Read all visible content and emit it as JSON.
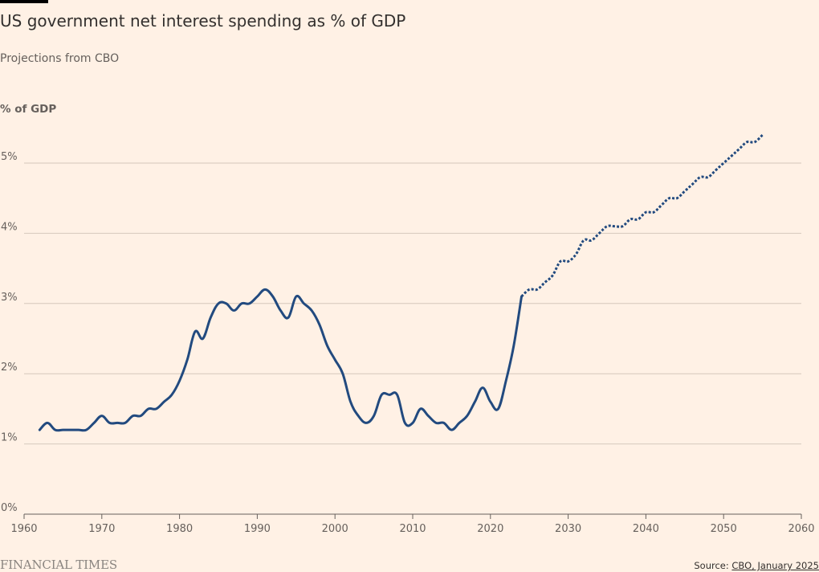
{
  "header": {
    "title": "US government net interest spending as % of GDP",
    "subtitle": "Projections from CBO"
  },
  "footer": {
    "brand": "FINANCIAL TIMES",
    "source_prefix": "Source: ",
    "source_link": "CBO, January 2025"
  },
  "colors": {
    "background": "#fff1e5",
    "line": "#224a7f",
    "grid": "#d6c8bc",
    "text": "#33302e",
    "muted": "#66605c"
  },
  "chart_data": {
    "type": "line",
    "title": "US government net interest spending as % of GDP",
    "subtitle": "Projections from CBO",
    "ylabel": "% of GDP",
    "xlabel": "",
    "xlim": [
      1960,
      2060
    ],
    "ylim": [
      0,
      5
    ],
    "x_ticks": [
      1960,
      1970,
      1980,
      1990,
      2000,
      2010,
      2020,
      2030,
      2040,
      2050,
      2060
    ],
    "y_ticks": [
      0,
      1,
      2,
      3,
      4,
      5
    ],
    "y_tick_labels": [
      "0%",
      "1%",
      "2%",
      "3%",
      "4%",
      "5%"
    ],
    "grid": "horizontal",
    "series": [
      {
        "style": "solid",
        "x": [
          1962,
          1963,
          1964,
          1965,
          1966,
          1967,
          1968,
          1969,
          1970,
          1971,
          1972,
          1973,
          1974,
          1975,
          1976,
          1977,
          1978,
          1979,
          1980,
          1981,
          1982,
          1983,
          1984,
          1985,
          1986,
          1987,
          1988,
          1989,
          1990,
          1991,
          1992,
          1993,
          1994,
          1995,
          1996,
          1997,
          1998,
          1999,
          2000,
          2001,
          2002,
          2003,
          2004,
          2005,
          2006,
          2007,
          2008,
          2009,
          2010,
          2011,
          2012,
          2013,
          2014,
          2015,
          2016,
          2017,
          2018,
          2019,
          2020,
          2021,
          2022,
          2023,
          2024
        ],
        "y": [
          1.2,
          1.3,
          1.2,
          1.2,
          1.2,
          1.2,
          1.2,
          1.3,
          1.4,
          1.3,
          1.3,
          1.3,
          1.4,
          1.4,
          1.5,
          1.5,
          1.6,
          1.7,
          1.9,
          2.2,
          2.6,
          2.5,
          2.8,
          3.0,
          3.0,
          2.9,
          3.0,
          3.0,
          3.1,
          3.2,
          3.1,
          2.9,
          2.8,
          3.1,
          3.0,
          2.9,
          2.7,
          2.4,
          2.2,
          2.0,
          1.6,
          1.4,
          1.3,
          1.4,
          1.7,
          1.7,
          1.7,
          1.3,
          1.3,
          1.5,
          1.4,
          1.3,
          1.3,
          1.2,
          1.3,
          1.4,
          1.6,
          1.8,
          1.6,
          1.5,
          1.9,
          2.4,
          3.1
        ]
      },
      {
        "style": "dotted",
        "x": [
          2024,
          2025,
          2026,
          2027,
          2028,
          2029,
          2030,
          2031,
          2032,
          2033,
          2034,
          2035,
          2036,
          2037,
          2038,
          2039,
          2040,
          2041,
          2042,
          2043,
          2044,
          2045,
          2046,
          2047,
          2048,
          2049,
          2050,
          2051,
          2052,
          2053,
          2054,
          2055
        ],
        "y": [
          3.1,
          3.2,
          3.2,
          3.3,
          3.4,
          3.6,
          3.6,
          3.7,
          3.9,
          3.9,
          4.0,
          4.1,
          4.1,
          4.1,
          4.2,
          4.2,
          4.3,
          4.3,
          4.4,
          4.5,
          4.5,
          4.6,
          4.7,
          4.8,
          4.8,
          4.9,
          5.0,
          5.1,
          5.2,
          5.3,
          5.3,
          5.4
        ]
      }
    ]
  }
}
